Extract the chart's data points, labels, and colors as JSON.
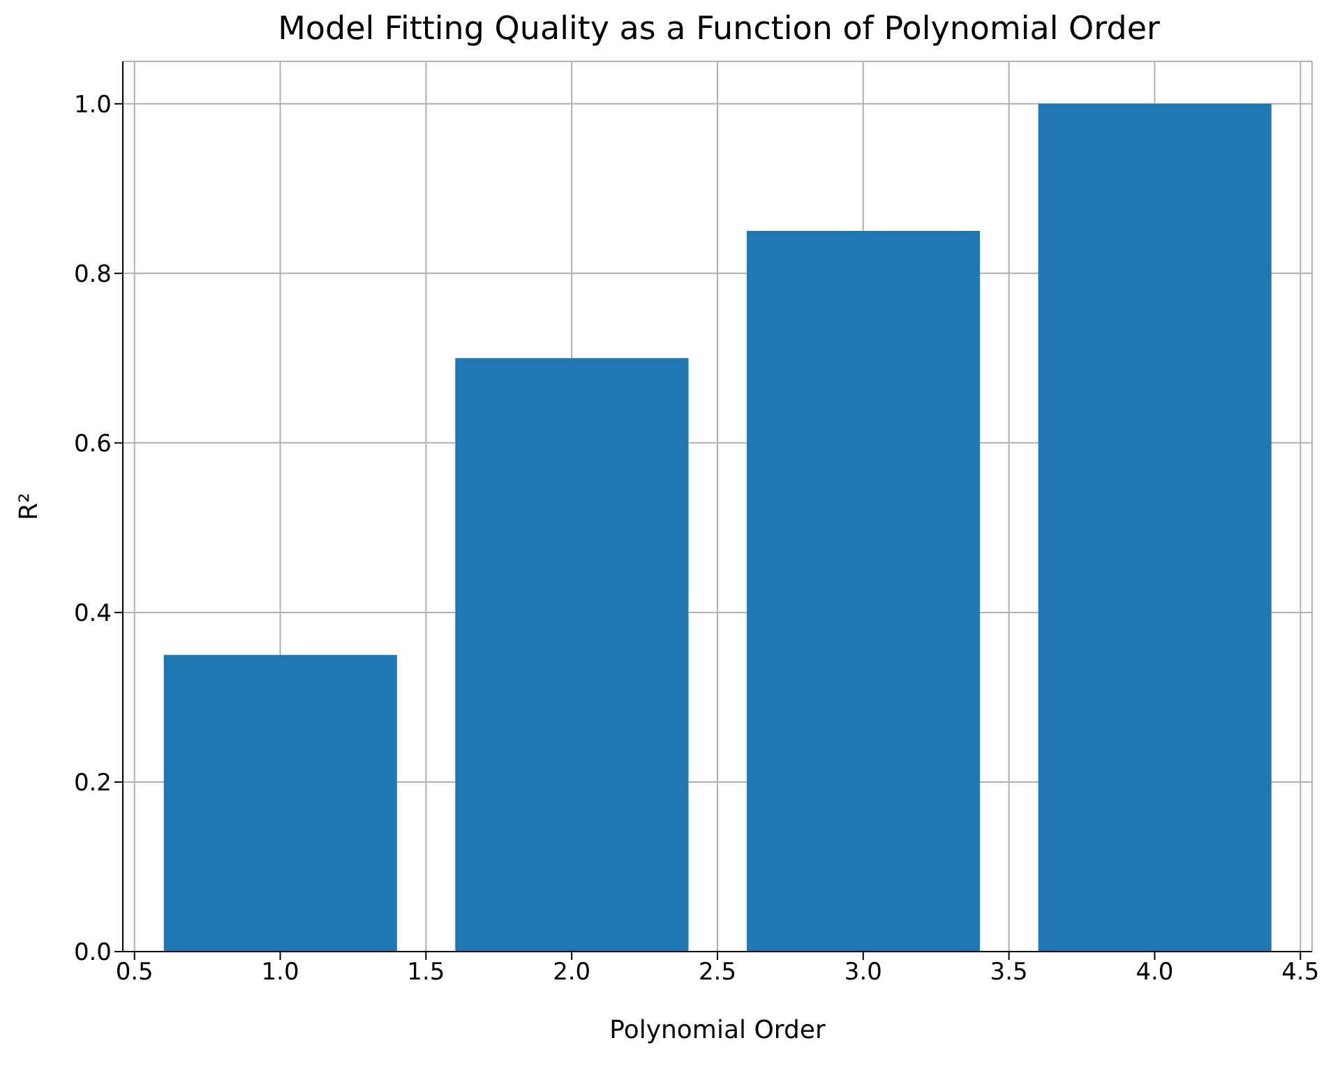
{
  "chart_data": {
    "type": "bar",
    "title": "Model Fitting Quality as a Function of Polynomial Order",
    "xlabel": "Polynomial Order",
    "ylabel": "R²",
    "x": [
      1,
      2,
      3,
      4
    ],
    "values": [
      0.35,
      0.7,
      0.85,
      1.0
    ],
    "color": "#1f77b4",
    "xlim": [
      0.46,
      4.54
    ],
    "xticks": [
      {
        "value": 0.5,
        "label": "0.5"
      },
      {
        "value": 1,
        "label": "1.0"
      },
      {
        "value": 1.5,
        "label": "1.5"
      },
      {
        "value": 2,
        "label": "2.0"
      },
      {
        "value": 2.5,
        "label": "2.5"
      },
      {
        "value": 3,
        "label": "3.0"
      },
      {
        "value": 3.5,
        "label": "3.5"
      },
      {
        "value": 4,
        "label": "4.0"
      },
      {
        "value": 4.5,
        "label": "4.5"
      }
    ],
    "ylim": [
      0,
      1.05
    ],
    "yticks": [
      {
        "value": 0,
        "label": "0.0"
      },
      {
        "value": 0.2,
        "label": "0.2"
      },
      {
        "value": 0.4,
        "label": "0.4"
      },
      {
        "value": 0.6,
        "label": "0.6"
      },
      {
        "value": 0.8,
        "label": "0.8"
      },
      {
        "value": 1,
        "label": "1.0"
      }
    ],
    "grid": true
  }
}
